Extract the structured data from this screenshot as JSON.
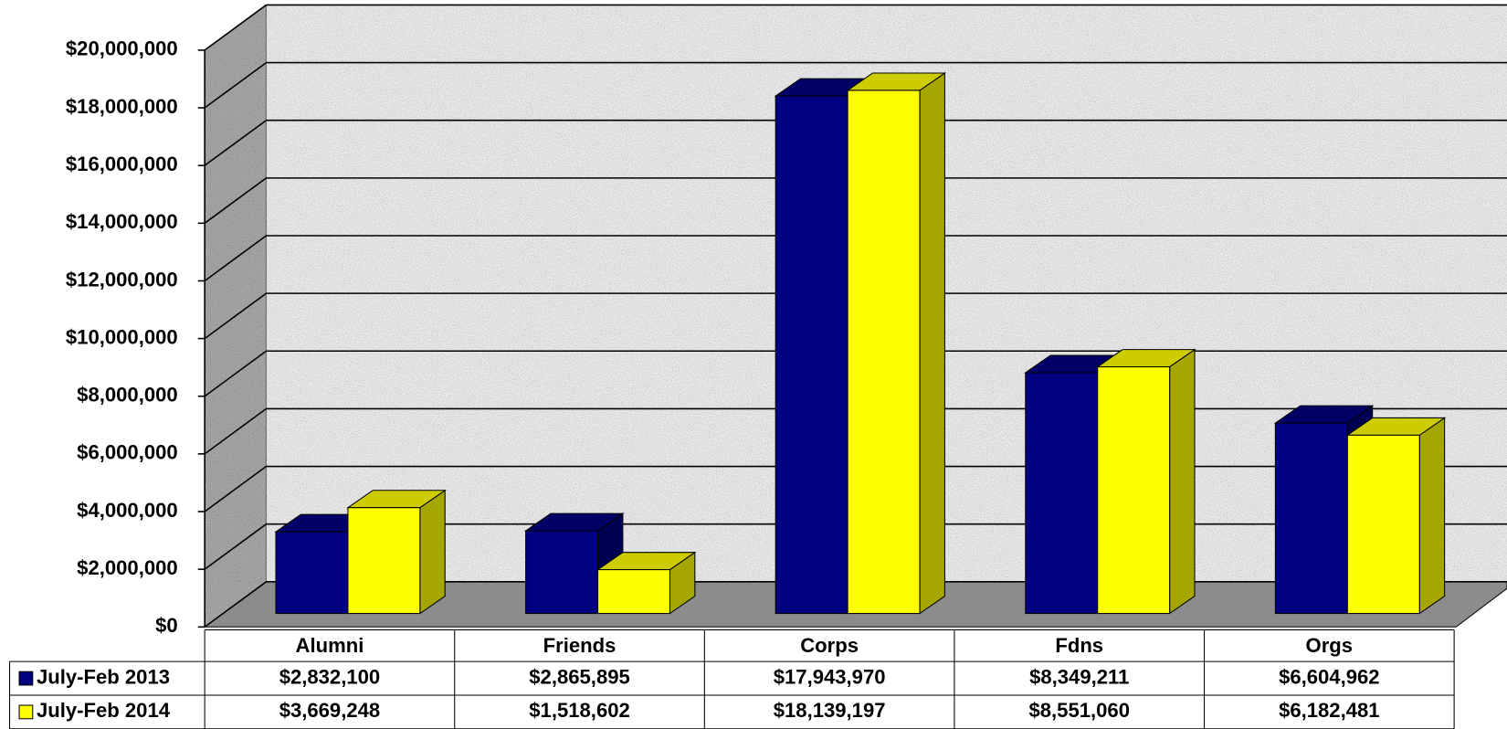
{
  "chart_data": {
    "type": "bar",
    "categories": [
      "Alumni",
      "Friends",
      "Corps",
      "Fdns",
      "Orgs"
    ],
    "series": [
      {
        "name": "July-Feb 2013",
        "color": "#000080",
        "values": [
          2832100,
          2865895,
          17943970,
          8349211,
          6604962
        ],
        "value_labels": [
          "$2,832,100",
          "$2,865,895",
          "$17,943,970",
          "$8,349,211",
          "$6,604,962"
        ]
      },
      {
        "name": "July-Feb 2014",
        "color": "#ffff00",
        "values": [
          3669248,
          1518602,
          18139197,
          8551060,
          6182481
        ],
        "value_labels": [
          "$3,669,248",
          "$1,518,602",
          "$18,139,197",
          "$8,551,060",
          "$6,182,481"
        ]
      }
    ],
    "ylim": [
      0,
      20000000
    ],
    "yticks": [
      {
        "value": 0,
        "label": "$0"
      },
      {
        "value": 2000000,
        "label": "$2,000,000"
      },
      {
        "value": 4000000,
        "label": "$4,000,000"
      },
      {
        "value": 6000000,
        "label": "$6,000,000"
      },
      {
        "value": 8000000,
        "label": "$8,000,000"
      },
      {
        "value": 10000000,
        "label": "$10,000,000"
      },
      {
        "value": 12000000,
        "label": "$12,000,000"
      },
      {
        "value": 14000000,
        "label": "$14,000,000"
      },
      {
        "value": 16000000,
        "label": "$16,000,000"
      },
      {
        "value": 18000000,
        "label": "$18,000,000"
      },
      {
        "value": 20000000,
        "label": "$20,000,000"
      }
    ],
    "grid": true,
    "data_table": true
  }
}
